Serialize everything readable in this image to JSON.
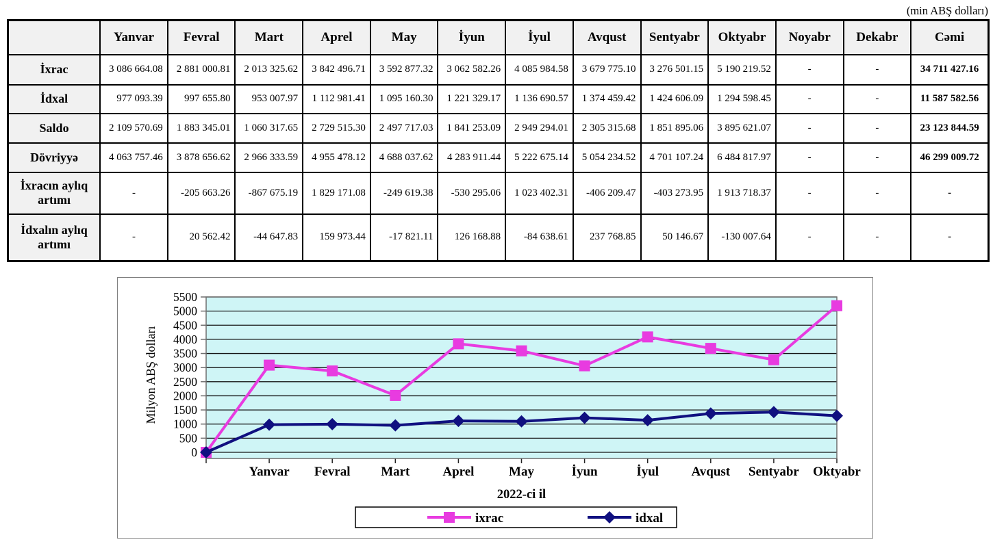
{
  "page": {
    "unit_note": "(min ABŞ dolları)"
  },
  "table": {
    "columns": [
      "",
      "Yanvar",
      "Fevral",
      "Mart",
      "Aprel",
      "May",
      "İyun",
      "İyul",
      "Avqust",
      "Sentyabr",
      "Oktyabr",
      "Noyabr",
      "Dekabr",
      "Cəmi"
    ],
    "rows": [
      {
        "label": "İxrac",
        "values": [
          "3 086 664.08",
          "2 881 000.81",
          "2 013 325.62",
          "3 842 496.71",
          "3 592 877.32",
          "3 062 582.26",
          "4 085 984.58",
          "3 679 775.10",
          "3 276 501.15",
          "5 190 219.52",
          "-",
          "-",
          "34 711 427.16"
        ]
      },
      {
        "label": "İdxal",
        "values": [
          "977 093.39",
          "997 655.80",
          "953 007.97",
          "1 112 981.41",
          "1 095 160.30",
          "1 221 329.17",
          "1 136 690.57",
          "1 374 459.42",
          "1 424 606.09",
          "1 294 598.45",
          "-",
          "-",
          "11 587 582.56"
        ]
      },
      {
        "label": "Saldo",
        "values": [
          "2 109 570.69",
          "1 883 345.01",
          "1 060 317.65",
          "2 729 515.30",
          "2 497 717.03",
          "1 841 253.09",
          "2 949 294.01",
          "2 305 315.68",
          "1 851 895.06",
          "3 895 621.07",
          "-",
          "-",
          "23 123 844.59"
        ]
      },
      {
        "label": "Dövriyyə",
        "values": [
          "4 063 757.46",
          "3 878 656.62",
          "2 966 333.59",
          "4 955 478.12",
          "4 688 037.62",
          "4 283 911.44",
          "5 222 675.14",
          "5 054 234.52",
          "4 701 107.24",
          "6 484 817.97",
          "-",
          "-",
          "46 299 009.72"
        ]
      },
      {
        "label": "İxracın aylıq artımı",
        "values": [
          "-",
          "-205 663.26",
          "-867 675.19",
          "1 829 171.08",
          "-249 619.38",
          "-530 295.06",
          "1 023 402.31",
          "-406 209.47",
          "-403 273.95",
          "1 913 718.37",
          "-",
          "-",
          "-"
        ]
      },
      {
        "label": "İdxalın aylıq artımı",
        "values": [
          "-",
          "20 562.42",
          "-44 647.83",
          "159 973.44",
          "-17 821.11",
          "126 168.88",
          "-84 638.61",
          "237 768.85",
          "50 146.67",
          "-130 007.64",
          "-",
          "-",
          "-"
        ]
      }
    ]
  },
  "chart_data": {
    "type": "line",
    "title": "",
    "xlabel": "2022-ci il",
    "ylabel": "Milyon ABŞ dolları",
    "categories": [
      "",
      "Yanvar",
      "Fevral",
      "Mart",
      "Aprel",
      "May",
      "İyun",
      "İyul",
      "Avqust",
      "Sentyabr",
      "Oktyabr"
    ],
    "series": [
      {
        "name": "ixrac",
        "marker": "square",
        "color": "#e83be0",
        "values": [
          0,
          3086.66,
          2881.0,
          2013.33,
          3842.5,
          3592.88,
          3062.58,
          4085.98,
          3679.78,
          3276.5,
          5190.22
        ]
      },
      {
        "name": "idxal",
        "marker": "diamond",
        "color": "#101080",
        "values": [
          0,
          977.09,
          997.66,
          953.01,
          1112.98,
          1095.16,
          1221.33,
          1136.69,
          1374.46,
          1424.61,
          1294.6
        ]
      }
    ],
    "ylim": [
      0,
      5500
    ],
    "ytick_step": 500,
    "grid": true,
    "legend_position": "bottom",
    "plot_bg": "#cff5f6",
    "gridline_color": "#141414",
    "frame_color": "#6e6e6e"
  }
}
